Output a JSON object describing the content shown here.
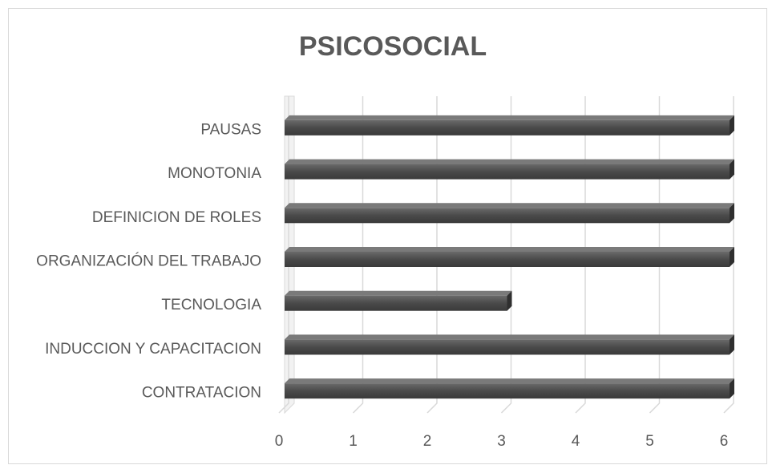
{
  "chart_data": {
    "type": "bar",
    "orientation": "horizontal",
    "title": "PSICOSOCIAL",
    "categories": [
      "CONTRATACION",
      "INDUCCION Y CAPACITACION",
      "TECNOLOGIA",
      "ORGANIZACIÓN DEL TRABAJO",
      "DEFINICION DE ROLES",
      "MONOTONIA",
      "PAUSAS"
    ],
    "values": [
      6,
      6,
      3,
      6,
      6,
      6,
      6
    ],
    "color": "#595959",
    "xlim": [
      0,
      6
    ],
    "xticks": [
      0,
      1,
      2,
      3,
      4,
      5,
      6
    ],
    "grid": true
  }
}
